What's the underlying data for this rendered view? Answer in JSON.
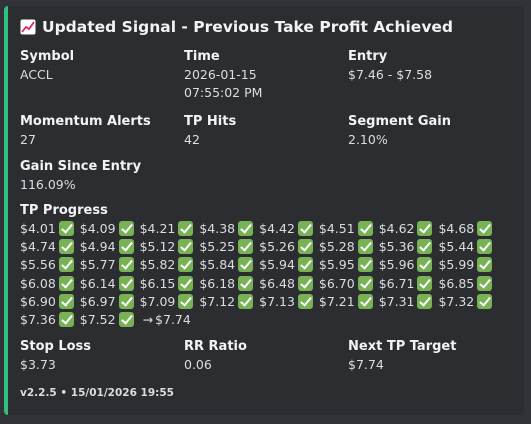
{
  "embed": {
    "accent_color": "#2fc27f",
    "title_icon": "chart-increasing-icon",
    "title": "Updated Signal - Previous Take Profit Achieved",
    "fields_row1": [
      {
        "name": "Symbol",
        "value": "ACCL"
      },
      {
        "name": "Time",
        "value": "2026-01-15\n07:55:02 PM"
      },
      {
        "name": "Entry",
        "value": "$7.46 - $7.58"
      }
    ],
    "fields_row2": [
      {
        "name": "Momentum Alerts",
        "value": "27"
      },
      {
        "name": "TP Hits",
        "value": "42"
      },
      {
        "name": "Segment Gain",
        "value": "2.10%"
      }
    ],
    "gain_since_entry": {
      "name": "Gain Since Entry",
      "value": "116.09%"
    },
    "tp_progress": {
      "name": "TP Progress",
      "hits": [
        "$4.01",
        "$4.09",
        "$4.21",
        "$4.38",
        "$4.42",
        "$4.51",
        "$4.62",
        "$4.68",
        "$4.74",
        "$4.94",
        "$5.12",
        "$5.25",
        "$5.26",
        "$5.28",
        "$5.36",
        "$5.44",
        "$5.56",
        "$5.77",
        "$5.82",
        "$5.84",
        "$5.94",
        "$5.95",
        "$5.96",
        "$5.99",
        "$6.08",
        "$6.14",
        "$6.15",
        "$6.18",
        "$6.48",
        "$6.70",
        "$6.71",
        "$6.85",
        "$6.90",
        "$6.97",
        "$7.09",
        "$7.12",
        "$7.13",
        "$7.21",
        "$7.31",
        "$7.32",
        "$7.36",
        "$7.52"
      ],
      "arrow": "→",
      "next": "$7.74"
    },
    "fields_row3": [
      {
        "name": "Stop Loss",
        "value": "$3.73"
      },
      {
        "name": "RR Ratio",
        "value": "0.06"
      },
      {
        "name": "Next TP Target",
        "value": "$7.74"
      }
    ],
    "footer": "v2.2.5 • 15/01/2026 19:55"
  }
}
